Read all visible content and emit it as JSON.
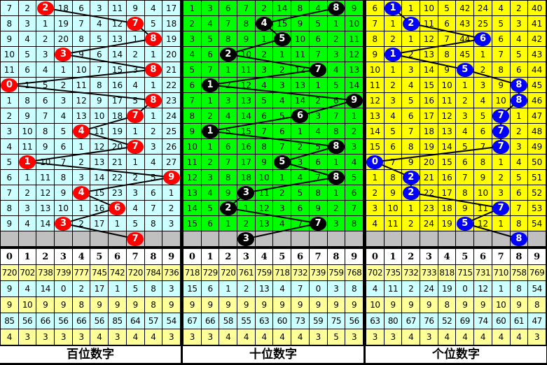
{
  "chart_data": [
    {
      "type": "table",
      "title": "百位数字",
      "colors": {
        "background": "#ccffff",
        "ball": "#ff0000"
      },
      "column_headers": [
        "0",
        "1",
        "2",
        "3",
        "4",
        "5",
        "6",
        "7",
        "8",
        "9"
      ],
      "rows": [
        [
          7,
          2,
          2,
          18,
          6,
          3,
          11,
          9,
          4,
          17
        ],
        [
          8,
          3,
          1,
          19,
          7,
          4,
          12,
          7,
          5,
          18
        ],
        [
          9,
          4,
          2,
          20,
          8,
          5,
          13,
          1,
          8,
          19
        ],
        [
          10,
          5,
          3,
          3,
          9,
          6,
          14,
          2,
          1,
          20
        ],
        [
          11,
          6,
          4,
          1,
          10,
          7,
          15,
          3,
          8,
          21
        ],
        [
          0,
          1,
          5,
          2,
          11,
          8,
          16,
          4,
          1,
          22
        ],
        [
          1,
          8,
          6,
          3,
          12,
          9,
          17,
          5,
          8,
          23
        ],
        [
          2,
          9,
          7,
          4,
          13,
          10,
          18,
          7,
          1,
          24
        ],
        [
          3,
          10,
          8,
          5,
          4,
          11,
          19,
          1,
          2,
          25
        ],
        [
          4,
          11,
          9,
          6,
          1,
          12,
          20,
          7,
          3,
          26
        ],
        [
          5,
          1,
          10,
          7,
          2,
          13,
          21,
          1,
          4,
          27
        ],
        [
          6,
          1,
          11,
          8,
          3,
          14,
          22,
          2,
          5,
          9
        ],
        [
          7,
          2,
          12,
          9,
          4,
          15,
          23,
          3,
          6,
          1
        ],
        [
          8,
          3,
          13,
          10,
          1,
          16,
          6,
          4,
          7,
          2
        ],
        [
          9,
          4,
          14,
          3,
          2,
          17,
          1,
          5,
          8,
          3
        ]
      ],
      "balls": [
        2,
        7,
        8,
        3,
        8,
        0,
        8,
        7,
        4,
        7,
        1,
        9,
        4,
        6,
        3,
        7
      ],
      "stats": [
        [
          720,
          702,
          738,
          739,
          777,
          745,
          742,
          720,
          784,
          736
        ],
        [
          9,
          4,
          14,
          0,
          2,
          17,
          1,
          5,
          8,
          3
        ],
        [
          9,
          10,
          9,
          9,
          8,
          9,
          9,
          9,
          8,
          9
        ],
        [
          85,
          56,
          66,
          56,
          66,
          56,
          85,
          64,
          57,
          54
        ],
        [
          4,
          3,
          3,
          3,
          3,
          4,
          3,
          4,
          4,
          3
        ]
      ]
    },
    {
      "type": "table",
      "title": "十位数字",
      "colors": {
        "background": "#00ff00",
        "ball": "#000000"
      },
      "column_headers": [
        "0",
        "1",
        "2",
        "3",
        "4",
        "5",
        "6",
        "7",
        "8",
        "9"
      ],
      "rows": [
        [
          1,
          3,
          6,
          7,
          2,
          14,
          8,
          4,
          8,
          9
        ],
        [
          2,
          4,
          7,
          8,
          4,
          15,
          9,
          5,
          1,
          10
        ],
        [
          3,
          5,
          8,
          9,
          1,
          5,
          10,
          6,
          2,
          11
        ],
        [
          4,
          6,
          2,
          10,
          2,
          1,
          11,
          7,
          3,
          12
        ],
        [
          5,
          7,
          1,
          11,
          3,
          2,
          12,
          7,
          4,
          13
        ],
        [
          6,
          1,
          2,
          12,
          4,
          3,
          13,
          1,
          5,
          14
        ],
        [
          7,
          1,
          3,
          13,
          5,
          4,
          14,
          2,
          6,
          9
        ],
        [
          8,
          2,
          4,
          14,
          6,
          5,
          6,
          3,
          7,
          1
        ],
        [
          9,
          1,
          5,
          15,
          7,
          6,
          1,
          4,
          8,
          2
        ],
        [
          10,
          1,
          6,
          16,
          8,
          7,
          2,
          5,
          8,
          3
        ],
        [
          11,
          2,
          7,
          17,
          9,
          5,
          3,
          6,
          1,
          4
        ],
        [
          12,
          3,
          8,
          18,
          10,
          1,
          4,
          7,
          8,
          5
        ],
        [
          13,
          4,
          9,
          3,
          11,
          2,
          5,
          8,
          1,
          6
        ],
        [
          14,
          5,
          2,
          1,
          12,
          3,
          6,
          9,
          2,
          7
        ],
        [
          15,
          6,
          1,
          2,
          13,
          4,
          7,
          7,
          3,
          8
        ]
      ],
      "balls": [
        8,
        4,
        5,
        2,
        7,
        1,
        9,
        6,
        1,
        8,
        5,
        8,
        3,
        2,
        7,
        3
      ],
      "stats": [
        [
          718,
          729,
          720,
          761,
          759,
          718,
          732,
          739,
          759,
          768
        ],
        [
          15,
          6,
          1,
          2,
          13,
          4,
          7,
          0,
          3,
          8
        ],
        [
          9,
          9,
          9,
          9,
          9,
          9,
          9,
          9,
          9,
          9
        ],
        [
          67,
          66,
          58,
          55,
          63,
          60,
          73,
          59,
          75,
          56
        ],
        [
          3,
          3,
          4,
          4,
          4,
          4,
          4,
          3,
          5,
          3
        ]
      ]
    },
    {
      "type": "table",
      "title": "个位数字",
      "colors": {
        "background": "#ffff00",
        "ball": "#0000ff"
      },
      "column_headers": [
        "0",
        "1",
        "2",
        "3",
        "4",
        "5",
        "6",
        "7",
        "8",
        "9"
      ],
      "rows": [
        [
          6,
          1,
          1,
          10,
          5,
          42,
          24,
          4,
          2,
          40
        ],
        [
          7,
          1,
          2,
          11,
          6,
          43,
          25,
          5,
          3,
          41
        ],
        [
          8,
          2,
          1,
          12,
          7,
          44,
          6,
          6,
          4,
          42
        ],
        [
          9,
          1,
          2,
          13,
          8,
          45,
          1,
          7,
          5,
          43
        ],
        [
          10,
          1,
          3,
          14,
          9,
          5,
          2,
          8,
          6,
          44
        ],
        [
          11,
          2,
          4,
          15,
          10,
          1,
          3,
          9,
          8,
          45
        ],
        [
          12,
          3,
          5,
          16,
          11,
          2,
          4,
          10,
          8,
          46
        ],
        [
          13,
          4,
          6,
          17,
          12,
          3,
          5,
          7,
          1,
          47
        ],
        [
          14,
          5,
          7,
          18,
          13,
          4,
          6,
          7,
          2,
          48
        ],
        [
          15,
          6,
          8,
          19,
          14,
          5,
          7,
          7,
          3,
          49
        ],
        [
          0,
          7,
          9,
          20,
          15,
          6,
          8,
          1,
          4,
          50
        ],
        [
          1,
          8,
          2,
          21,
          16,
          7,
          9,
          2,
          5,
          51
        ],
        [
          2,
          9,
          2,
          22,
          17,
          8,
          10,
          3,
          6,
          52
        ],
        [
          3,
          10,
          1,
          23,
          18,
          9,
          11,
          7,
          7,
          53
        ],
        [
          4,
          11,
          2,
          24,
          19,
          5,
          12,
          1,
          8,
          54
        ]
      ],
      "balls": [
        1,
        2,
        6,
        1,
        5,
        8,
        8,
        7,
        7,
        7,
        0,
        2,
        2,
        7,
        5,
        8
      ],
      "stats": [
        [
          702,
          735,
          732,
          733,
          818,
          715,
          731,
          710,
          758,
          769
        ],
        [
          4,
          11,
          2,
          24,
          19,
          0,
          12,
          1,
          8,
          54
        ],
        [
          10,
          9,
          9,
          9,
          8,
          9,
          9,
          10,
          9,
          8
        ],
        [
          63,
          80,
          67,
          76,
          52,
          69,
          74,
          60,
          61,
          47
        ],
        [
          3,
          3,
          4,
          3,
          4,
          4,
          4,
          4,
          4,
          3
        ]
      ]
    }
  ]
}
